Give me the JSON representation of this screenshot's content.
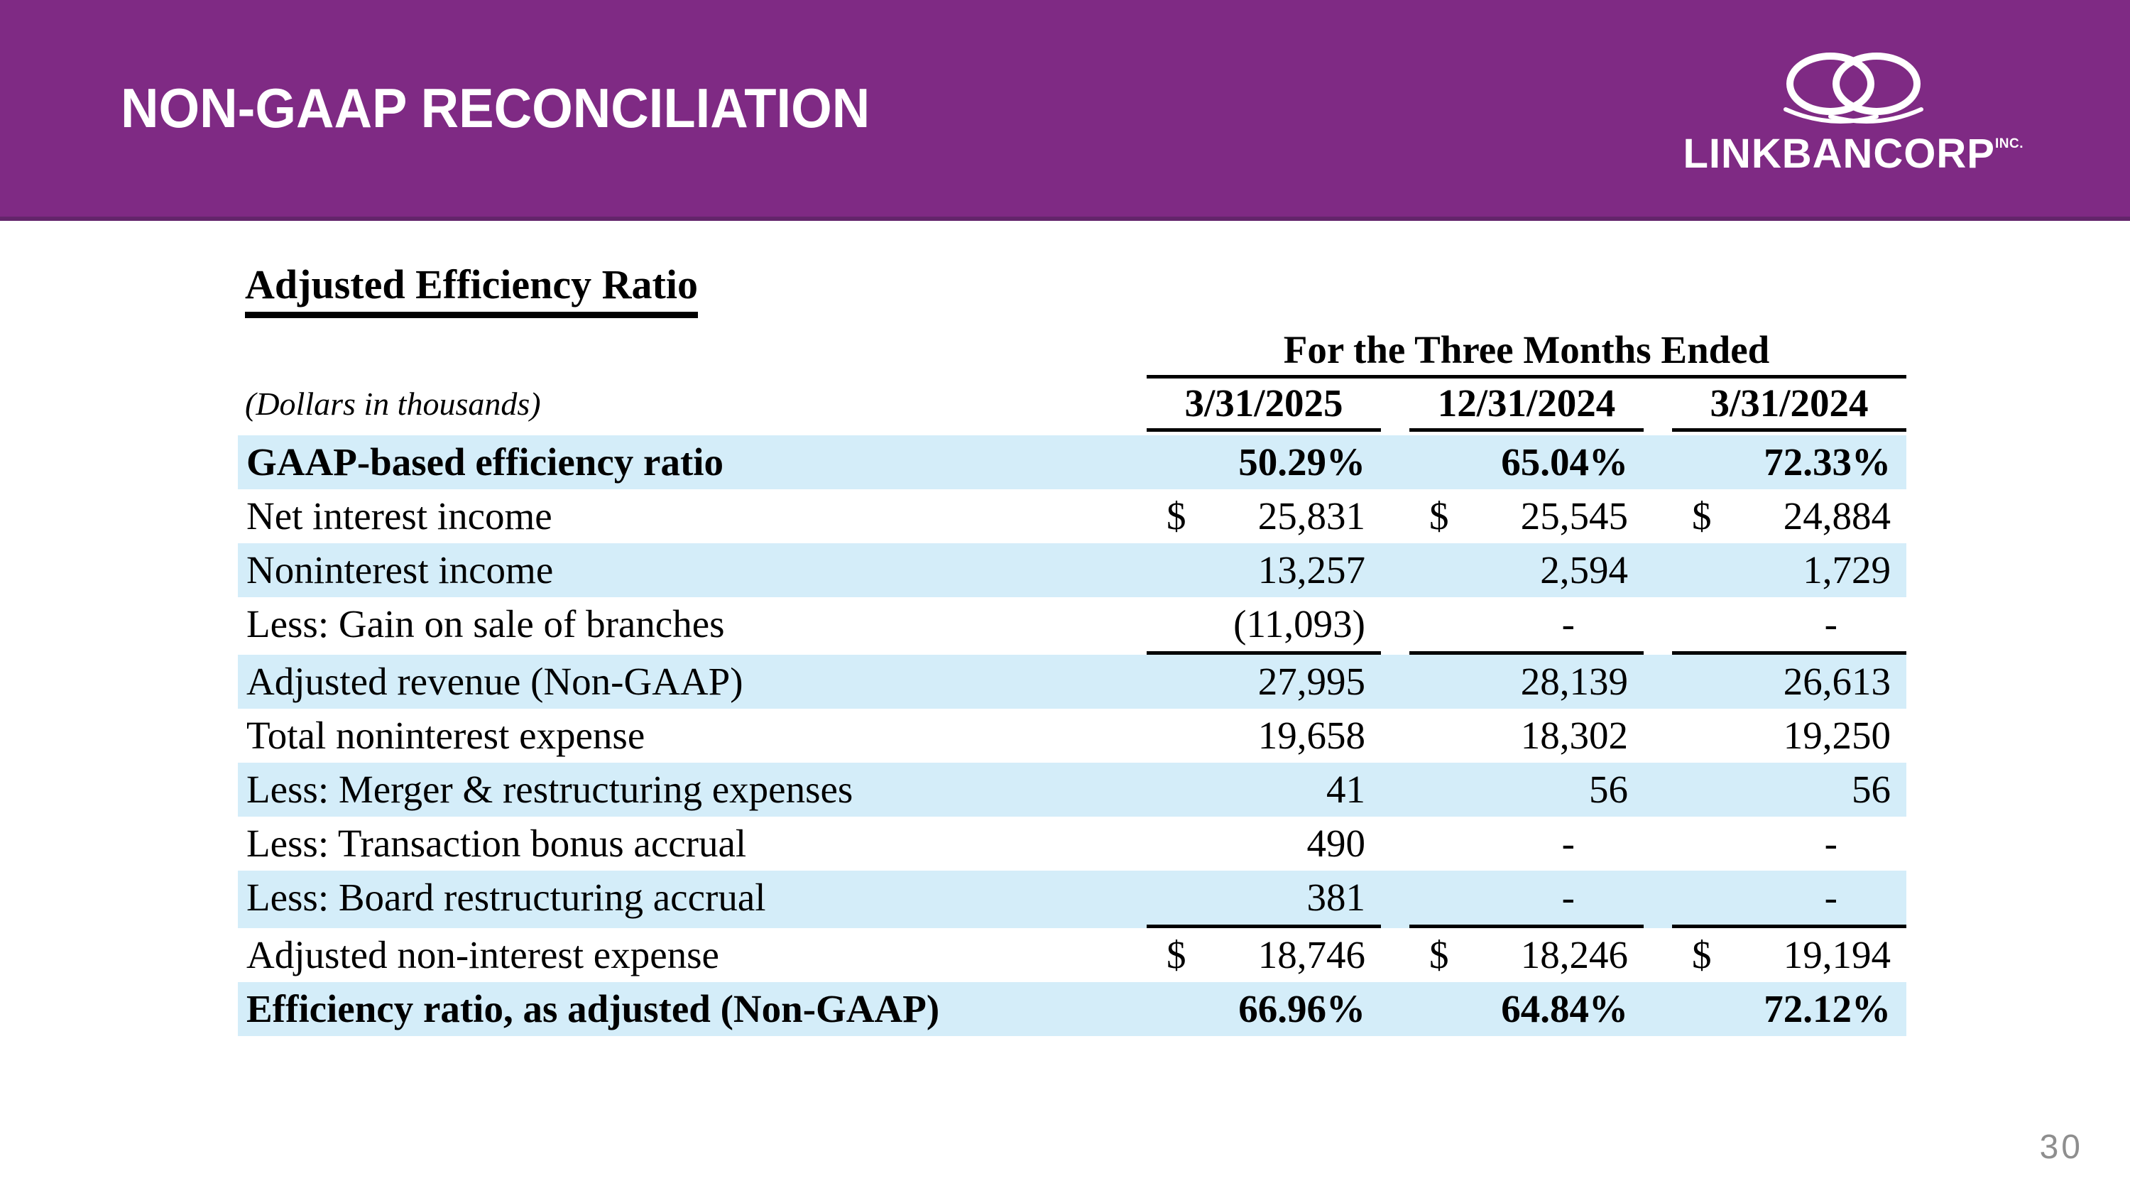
{
  "header": {
    "title": "NON-GAAP RECONCILIATION",
    "logo": {
      "wordmark": "LINKBANCORP",
      "suffix": "INC."
    }
  },
  "footer": {
    "page_number": "30"
  },
  "colors": {
    "header_purple": "#7F2A84",
    "header_purple_dark": "#63256B",
    "row_highlight_blue": "#D4EDF9"
  },
  "table": {
    "heading": "Adjusted Efficiency Ratio",
    "units_note": "(Dollars in thousands)",
    "period_header": "For the Three Months Ended",
    "currency_symbol": "$",
    "columns": [
      "3/31/2025",
      "12/31/2024",
      "3/31/2024"
    ],
    "rows": [
      {
        "label": "GAAP-based efficiency ratio",
        "values": [
          "50.29%",
          "65.04%",
          "72.33%"
        ],
        "shaded": true,
        "bold": true,
        "dollar": false,
        "rule_below": false
      },
      {
        "label": "Net interest income",
        "values": [
          "25,831",
          "25,545",
          "24,884"
        ],
        "shaded": false,
        "bold": false,
        "dollar": true,
        "rule_below": false
      },
      {
        "label": "Noninterest income",
        "values": [
          "13,257",
          "2,594",
          "1,729"
        ],
        "shaded": true,
        "bold": false,
        "dollar": false,
        "rule_below": false
      },
      {
        "label": "Less: Gain on sale of branches",
        "values": [
          "(11,093)",
          "-",
          "-"
        ],
        "shaded": false,
        "bold": false,
        "dollar": false,
        "rule_below": true
      },
      {
        "label": "Adjusted revenue (Non-GAAP)",
        "values": [
          "27,995",
          "28,139",
          "26,613"
        ],
        "shaded": true,
        "bold": false,
        "dollar": false,
        "rule_below": false
      },
      {
        "label": "Total noninterest expense",
        "values": [
          "19,658",
          "18,302",
          "19,250"
        ],
        "shaded": false,
        "bold": false,
        "dollar": false,
        "rule_below": false
      },
      {
        "label": "Less: Merger & restructuring expenses",
        "values": [
          "41",
          "56",
          "56"
        ],
        "shaded": true,
        "bold": false,
        "dollar": false,
        "rule_below": false
      },
      {
        "label": "Less: Transaction bonus accrual",
        "values": [
          "490",
          "-",
          "-"
        ],
        "shaded": false,
        "bold": false,
        "dollar": false,
        "rule_below": false
      },
      {
        "label": "Less: Board restructuring accrual",
        "values": [
          "381",
          "-",
          "-"
        ],
        "shaded": true,
        "bold": false,
        "dollar": false,
        "rule_below": true
      },
      {
        "label": "Adjusted non-interest expense",
        "values": [
          "18,746",
          "18,246",
          "19,194"
        ],
        "shaded": false,
        "bold": false,
        "dollar": true,
        "rule_below": false
      },
      {
        "label": "Efficiency ratio, as adjusted (Non-GAAP)",
        "values": [
          "66.96%",
          "64.84%",
          "72.12%"
        ],
        "shaded": true,
        "bold": true,
        "dollar": false,
        "rule_below": false
      }
    ]
  }
}
